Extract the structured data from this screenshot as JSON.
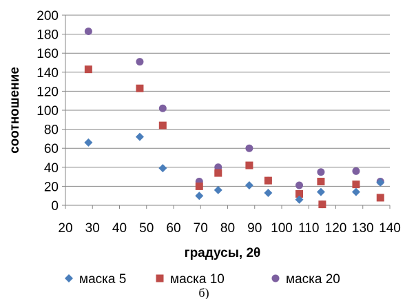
{
  "chart_data": {
    "type": "scatter",
    "title": "",
    "xlabel": "градусы, 2θ",
    "ylabel": "соотношение",
    "xlim": [
      20,
      140
    ],
    "ylim": [
      0,
      200
    ],
    "x_ticks": [
      "20",
      "30",
      "40",
      "50",
      "60",
      "70",
      "80",
      "90",
      "100",
      "110",
      "120",
      "130",
      "140"
    ],
    "y_ticks": [
      "0",
      "20",
      "40",
      "60",
      "80",
      "100",
      "120",
      "140",
      "160",
      "180",
      "200"
    ],
    "grid": "horizontal",
    "legend_position": "bottom",
    "caption": "б)",
    "series": [
      {
        "name": "маска 5",
        "marker": "diamond",
        "color": "#4a7ebb",
        "points": [
          {
            "x": 28.5,
            "y": 66
          },
          {
            "x": 47.5,
            "y": 72
          },
          {
            "x": 56,
            "y": 39
          },
          {
            "x": 69.5,
            "y": 10
          },
          {
            "x": 76.5,
            "y": 16
          },
          {
            "x": 88,
            "y": 21
          },
          {
            "x": 95,
            "y": 13
          },
          {
            "x": 106.5,
            "y": 6
          },
          {
            "x": 114.5,
            "y": 14
          },
          {
            "x": 127.5,
            "y": 14
          },
          {
            "x": 136.5,
            "y": 24
          }
        ]
      },
      {
        "name": "маска 10",
        "marker": "square",
        "color": "#be4b48",
        "points": [
          {
            "x": 28.5,
            "y": 143
          },
          {
            "x": 47.5,
            "y": 123
          },
          {
            "x": 56,
            "y": 84
          },
          {
            "x": 69.5,
            "y": 20
          },
          {
            "x": 76.5,
            "y": 34
          },
          {
            "x": 88,
            "y": 42
          },
          {
            "x": 95,
            "y": 26
          },
          {
            "x": 106.5,
            "y": 12
          },
          {
            "x": 114.5,
            "y": 25
          },
          {
            "x": 115,
            "y": 1
          },
          {
            "x": 127.5,
            "y": 22
          },
          {
            "x": 136.5,
            "y": 8
          }
        ]
      },
      {
        "name": "маска 20",
        "marker": "circle",
        "color": "#7d60a0",
        "points": [
          {
            "x": 28.5,
            "y": 183
          },
          {
            "x": 47.5,
            "y": 151
          },
          {
            "x": 56,
            "y": 102
          },
          {
            "x": 69.5,
            "y": 25
          },
          {
            "x": 76.5,
            "y": 40
          },
          {
            "x": 88,
            "y": 60
          },
          {
            "x": 95,
            "y": 26
          },
          {
            "x": 106.5,
            "y": 21
          },
          {
            "x": 114.5,
            "y": 35
          },
          {
            "x": 115,
            "y": 1
          },
          {
            "x": 127.5,
            "y": 36
          },
          {
            "x": 136.5,
            "y": 25
          }
        ]
      }
    ]
  }
}
